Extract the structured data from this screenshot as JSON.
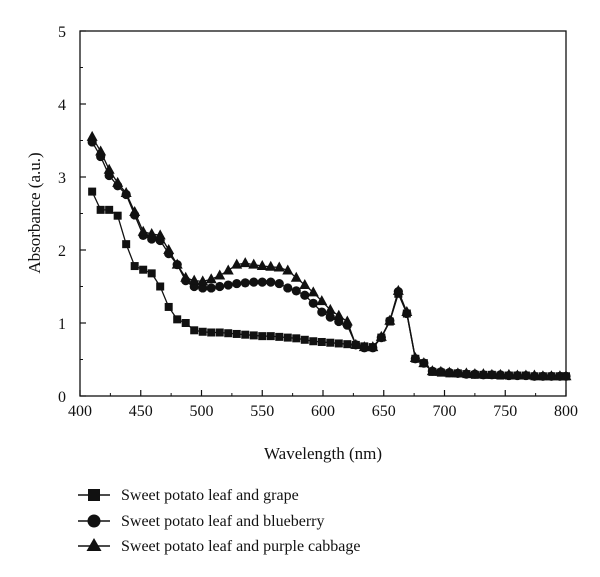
{
  "chart_data": {
    "type": "line",
    "title": "",
    "xlabel": "Wavelength (nm)",
    "ylabel": "Absorbance (a.u.)",
    "xlim": [
      400,
      800
    ],
    "ylim": [
      0,
      5
    ],
    "x_ticks": [
      "400",
      "450",
      "500",
      "550",
      "600",
      "650",
      "700",
      "750",
      "800"
    ],
    "y_ticks": [
      "0",
      "1",
      "2",
      "3",
      "4",
      "5"
    ],
    "grid": false,
    "legend_position": "bottom",
    "series": [
      {
        "name": "Sweet potato leaf and grape",
        "marker": "square",
        "x": [
          410,
          417,
          424,
          431,
          438,
          445,
          452,
          459,
          466,
          473,
          480,
          487,
          494,
          501,
          508,
          515,
          522,
          529,
          536,
          543,
          550,
          557,
          564,
          571,
          578,
          585,
          592,
          599,
          606,
          613,
          620,
          627,
          634,
          641,
          648,
          655,
          662,
          669,
          676,
          683,
          690,
          697,
          704,
          711,
          718,
          725,
          732,
          739,
          746,
          753,
          760,
          767,
          774,
          781,
          788,
          795,
          800
        ],
        "values": [
          2.8,
          2.55,
          2.55,
          2.47,
          2.08,
          1.78,
          1.73,
          1.68,
          1.5,
          1.22,
          1.05,
          1.0,
          0.9,
          0.88,
          0.87,
          0.87,
          0.86,
          0.85,
          0.84,
          0.83,
          0.82,
          0.82,
          0.81,
          0.8,
          0.79,
          0.77,
          0.75,
          0.74,
          0.73,
          0.72,
          0.71,
          0.7,
          0.68,
          0.67,
          0.8,
          1.02,
          1.4,
          1.13,
          0.51,
          0.45,
          0.33,
          0.32,
          0.31,
          0.31,
          0.3,
          0.29,
          0.29,
          0.29,
          0.28,
          0.28,
          0.28,
          0.28,
          0.27,
          0.27,
          0.27,
          0.27,
          0.27
        ]
      },
      {
        "name": "Sweet potato leaf and blueberry",
        "marker": "circle",
        "x": [
          410,
          417,
          424,
          431,
          438,
          445,
          452,
          459,
          466,
          473,
          480,
          487,
          494,
          501,
          508,
          515,
          522,
          529,
          536,
          543,
          550,
          557,
          564,
          571,
          578,
          585,
          592,
          599,
          606,
          613,
          620,
          627,
          634,
          641,
          648,
          655,
          662,
          669,
          676,
          683,
          690,
          697,
          704,
          711,
          718,
          725,
          732,
          739,
          746,
          753,
          760,
          767,
          774,
          781,
          788,
          795,
          800
        ],
        "values": [
          3.48,
          3.28,
          3.02,
          2.88,
          2.76,
          2.48,
          2.2,
          2.15,
          2.13,
          1.95,
          1.8,
          1.58,
          1.5,
          1.48,
          1.48,
          1.5,
          1.52,
          1.54,
          1.55,
          1.56,
          1.56,
          1.56,
          1.54,
          1.48,
          1.44,
          1.38,
          1.27,
          1.15,
          1.08,
          1.02,
          0.97,
          0.7,
          0.66,
          0.66,
          0.8,
          1.03,
          1.43,
          1.13,
          0.51,
          0.45,
          0.34,
          0.33,
          0.32,
          0.31,
          0.3,
          0.3,
          0.29,
          0.29,
          0.29,
          0.28,
          0.28,
          0.28,
          0.27,
          0.27,
          0.27,
          0.27,
          0.27
        ]
      },
      {
        "name": "Sweet potato leaf and purple cabbage",
        "marker": "triangle",
        "x": [
          410,
          417,
          424,
          431,
          438,
          445,
          452,
          459,
          466,
          473,
          480,
          487,
          494,
          501,
          508,
          515,
          522,
          529,
          536,
          543,
          550,
          557,
          564,
          571,
          578,
          585,
          592,
          599,
          606,
          613,
          620,
          627,
          634,
          641,
          648,
          655,
          662,
          669,
          676,
          683,
          690,
          697,
          704,
          711,
          718,
          725,
          732,
          739,
          746,
          753,
          760,
          767,
          774,
          781,
          788,
          795,
          800
        ],
        "values": [
          3.55,
          3.35,
          3.1,
          2.92,
          2.78,
          2.52,
          2.25,
          2.22,
          2.2,
          2.0,
          1.8,
          1.62,
          1.58,
          1.57,
          1.6,
          1.65,
          1.72,
          1.8,
          1.82,
          1.8,
          1.78,
          1.77,
          1.76,
          1.72,
          1.62,
          1.52,
          1.42,
          1.3,
          1.18,
          1.1,
          1.02,
          0.7,
          0.67,
          0.67,
          0.81,
          1.03,
          1.44,
          1.15,
          0.52,
          0.45,
          0.34,
          0.33,
          0.32,
          0.31,
          0.31,
          0.3,
          0.3,
          0.29,
          0.29,
          0.29,
          0.28,
          0.28,
          0.28,
          0.27,
          0.27,
          0.27,
          0.27
        ]
      }
    ]
  }
}
